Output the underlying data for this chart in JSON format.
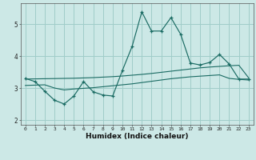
{
  "title": "",
  "xlabel": "Humidex (Indice chaleur)",
  "ylabel": "",
  "bg_color": "#cce8e6",
  "grid_color": "#a0cdc9",
  "line_color": "#1a6b63",
  "xlim": [
    -0.5,
    23.5
  ],
  "ylim": [
    1.85,
    5.65
  ],
  "yticks": [
    2,
    3,
    4,
    5
  ],
  "xticks": [
    0,
    1,
    2,
    3,
    4,
    5,
    6,
    7,
    8,
    9,
    10,
    11,
    12,
    13,
    14,
    15,
    16,
    17,
    18,
    19,
    20,
    21,
    22,
    23
  ],
  "main_y": [
    3.3,
    3.2,
    2.9,
    2.62,
    2.5,
    2.75,
    3.2,
    2.88,
    2.78,
    2.75,
    3.55,
    4.3,
    5.38,
    4.78,
    4.78,
    5.2,
    4.68,
    3.78,
    3.72,
    3.8,
    4.05,
    3.75,
    3.28,
    3.28
  ],
  "trend_upper_y": [
    3.28,
    3.285,
    3.29,
    3.295,
    3.3,
    3.305,
    3.315,
    3.325,
    3.34,
    3.355,
    3.375,
    3.4,
    3.425,
    3.455,
    3.49,
    3.525,
    3.56,
    3.595,
    3.63,
    3.655,
    3.675,
    3.695,
    3.71,
    3.32
  ],
  "trend_lower_y": [
    3.08,
    3.09,
    3.1,
    3.0,
    2.94,
    2.97,
    2.99,
    3.01,
    3.04,
    3.07,
    3.1,
    3.13,
    3.17,
    3.21,
    3.25,
    3.29,
    3.32,
    3.35,
    3.37,
    3.39,
    3.41,
    3.3,
    3.27,
    3.25
  ]
}
